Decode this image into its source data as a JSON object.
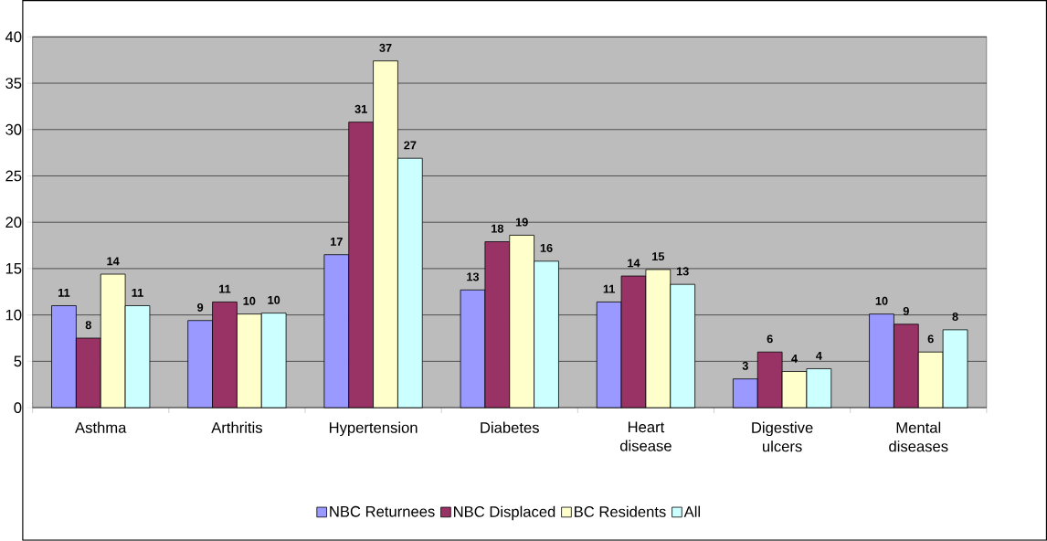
{
  "chart_data": {
    "type": "bar",
    "categories": [
      "Asthma",
      "Arthritis",
      "Hypertension",
      "Diabetes",
      "Heart disease",
      "Digestive ulcers",
      "Mental diseases"
    ],
    "series": [
      {
        "name": "NBC Returnees",
        "color": "#9999ff",
        "values": [
          11.0,
          9.4,
          16.5,
          12.7,
          11.4,
          3.1,
          10.1
        ],
        "value_labels": [
          "11",
          "9",
          "17",
          "13",
          "11",
          "3",
          "10"
        ]
      },
      {
        "name": "NBC Displaced",
        "color": "#993366",
        "values": [
          7.5,
          11.4,
          30.8,
          17.9,
          14.2,
          6.0,
          9.0
        ],
        "value_labels": [
          "8",
          "11",
          "31",
          "18",
          "14",
          "6",
          "9"
        ]
      },
      {
        "name": "BC Residents",
        "color": "#ffffcc",
        "values": [
          14.4,
          10.1,
          37.4,
          18.6,
          14.9,
          3.9,
          6.0
        ],
        "value_labels": [
          "14",
          "10",
          "37",
          "19",
          "15",
          "4",
          "6"
        ]
      },
      {
        "name": "All",
        "color": "#ccffff",
        "values": [
          11.0,
          10.2,
          26.9,
          15.8,
          13.3,
          4.2,
          8.4
        ],
        "value_labels": [
          "11",
          "10",
          "27",
          "16",
          "13",
          "4",
          "8"
        ]
      }
    ],
    "ylim": [
      0,
      40
    ],
    "yticks": [
      0,
      5,
      10,
      15,
      20,
      25,
      30,
      35,
      40
    ],
    "grid": "y",
    "legend": "bottom"
  }
}
